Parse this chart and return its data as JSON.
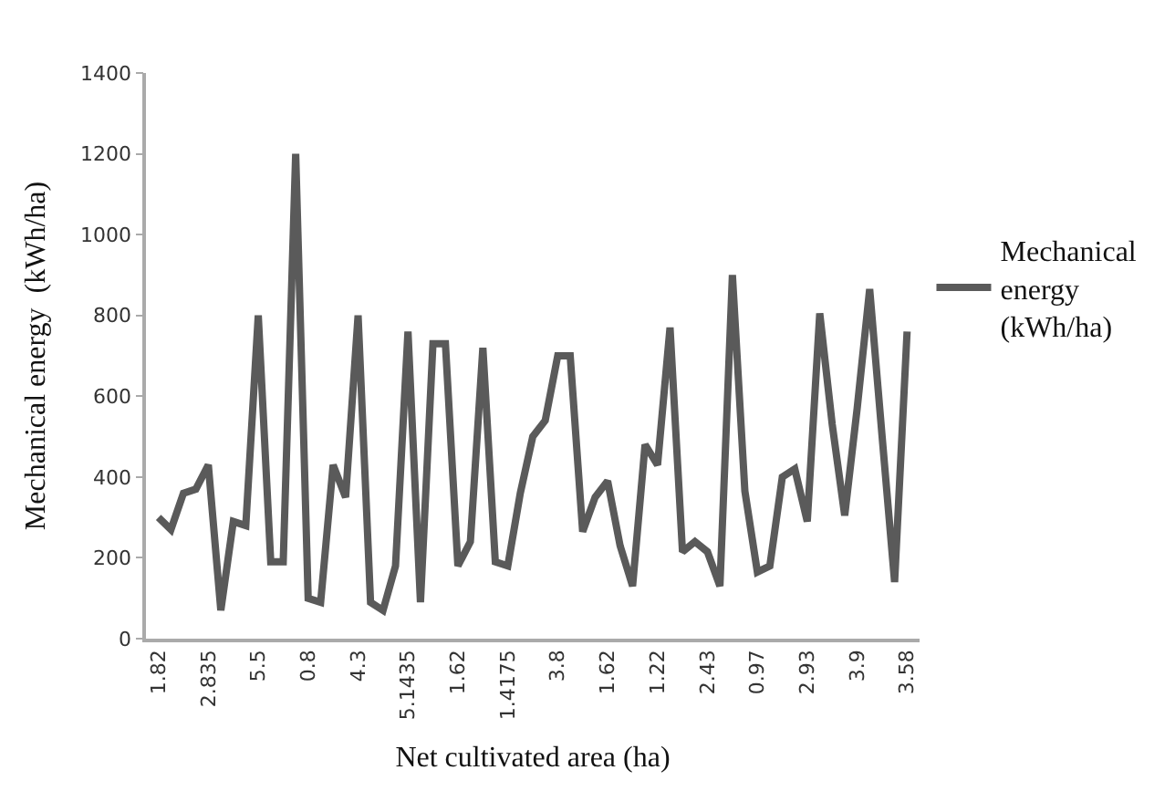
{
  "chart_data": {
    "type": "line",
    "xlabel": "Net cultivated area (ha)",
    "ylabel": "Mechanical energy  (kWh/ha)",
    "categories": [
      "1.82",
      null,
      null,
      null,
      "2.835",
      null,
      null,
      null,
      "5.5",
      null,
      null,
      null,
      "0.8",
      null,
      null,
      null,
      "4.3",
      null,
      null,
      null,
      "5.1435",
      null,
      null,
      null,
      "1.62",
      null,
      null,
      null,
      "1.4175",
      null,
      null,
      null,
      "3.8",
      null,
      null,
      null,
      "1.62",
      null,
      null,
      null,
      "1.22",
      null,
      null,
      null,
      "2.43",
      null,
      null,
      null,
      "0.97",
      null,
      null,
      null,
      "2.93",
      null,
      null,
      null,
      "3.9",
      null,
      null,
      null,
      "3.58"
    ],
    "series": [
      {
        "name": "Mechanical energy (kWh/ha)",
        "color": "#5a5a5a",
        "values": [
          300,
          270,
          360,
          370,
          430,
          70,
          290,
          280,
          800,
          190,
          190,
          1200,
          100,
          90,
          430,
          350,
          800,
          90,
          70,
          180,
          760,
          90,
          730,
          730,
          180,
          240,
          720,
          190,
          180,
          360,
          500,
          540,
          700,
          700,
          265,
          350,
          390,
          230,
          130,
          480,
          430,
          770,
          215,
          240,
          215,
          130,
          900,
          365,
          165,
          180,
          400,
          420,
          290,
          805,
          530,
          305,
          570,
          865,
          500,
          140,
          760
        ]
      }
    ],
    "ylim": [
      0,
      1400
    ],
    "yticks": [
      0,
      200,
      400,
      600,
      800,
      1000,
      1200,
      1400
    ],
    "legend": "right",
    "marker": "none",
    "line_style": "solid"
  }
}
